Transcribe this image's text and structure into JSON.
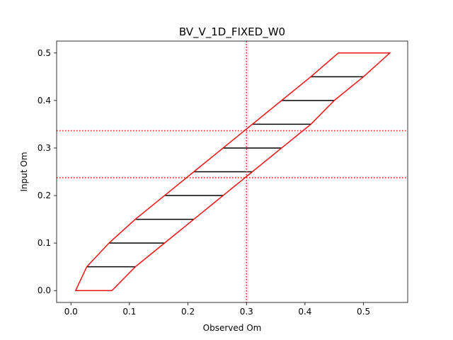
{
  "chart_data": {
    "type": "line",
    "title": "BV_V_1D_FIXED_W0",
    "xlabel": "Observed Om",
    "ylabel": "Input Om",
    "xlim": [
      -0.0245,
      0.5755
    ],
    "ylim": [
      -0.025,
      0.525
    ],
    "xticks": [
      0.0,
      0.1,
      0.2,
      0.3,
      0.4,
      0.5
    ],
    "xtick_labels": [
      "0.0",
      "0.1",
      "0.2",
      "0.3",
      "0.4",
      "0.5"
    ],
    "yticks": [
      0.0,
      0.1,
      0.2,
      0.3,
      0.4,
      0.5
    ],
    "ytick_labels": [
      "0.0",
      "0.1",
      "0.2",
      "0.3",
      "0.4",
      "0.5"
    ],
    "grid": false,
    "intervals": [
      {
        "y": 0.0,
        "x_low": 0.008,
        "x_high": 0.07
      },
      {
        "y": 0.05,
        "x_low": 0.027,
        "x_high": 0.11
      },
      {
        "y": 0.1,
        "x_low": 0.065,
        "x_high": 0.16
      },
      {
        "y": 0.15,
        "x_low": 0.11,
        "x_high": 0.21
      },
      {
        "y": 0.2,
        "x_low": 0.16,
        "x_high": 0.26
      },
      {
        "y": 0.25,
        "x_low": 0.21,
        "x_high": 0.31
      },
      {
        "y": 0.3,
        "x_low": 0.26,
        "x_high": 0.36
      },
      {
        "y": 0.35,
        "x_low": 0.31,
        "x_high": 0.41
      },
      {
        "y": 0.4,
        "x_low": 0.36,
        "x_high": 0.45
      },
      {
        "y": 0.45,
        "x_low": 0.41,
        "x_high": 0.5
      },
      {
        "y": 0.5,
        "x_low": 0.457,
        "x_high": 0.545
      }
    ],
    "reference_lines": {
      "vertical_x": [
        0.3
      ],
      "horizontal_y": [
        0.2375,
        0.3365
      ]
    },
    "colors": {
      "band": "#ee1111",
      "interval": "#000000",
      "reference": "#ee1111"
    }
  }
}
